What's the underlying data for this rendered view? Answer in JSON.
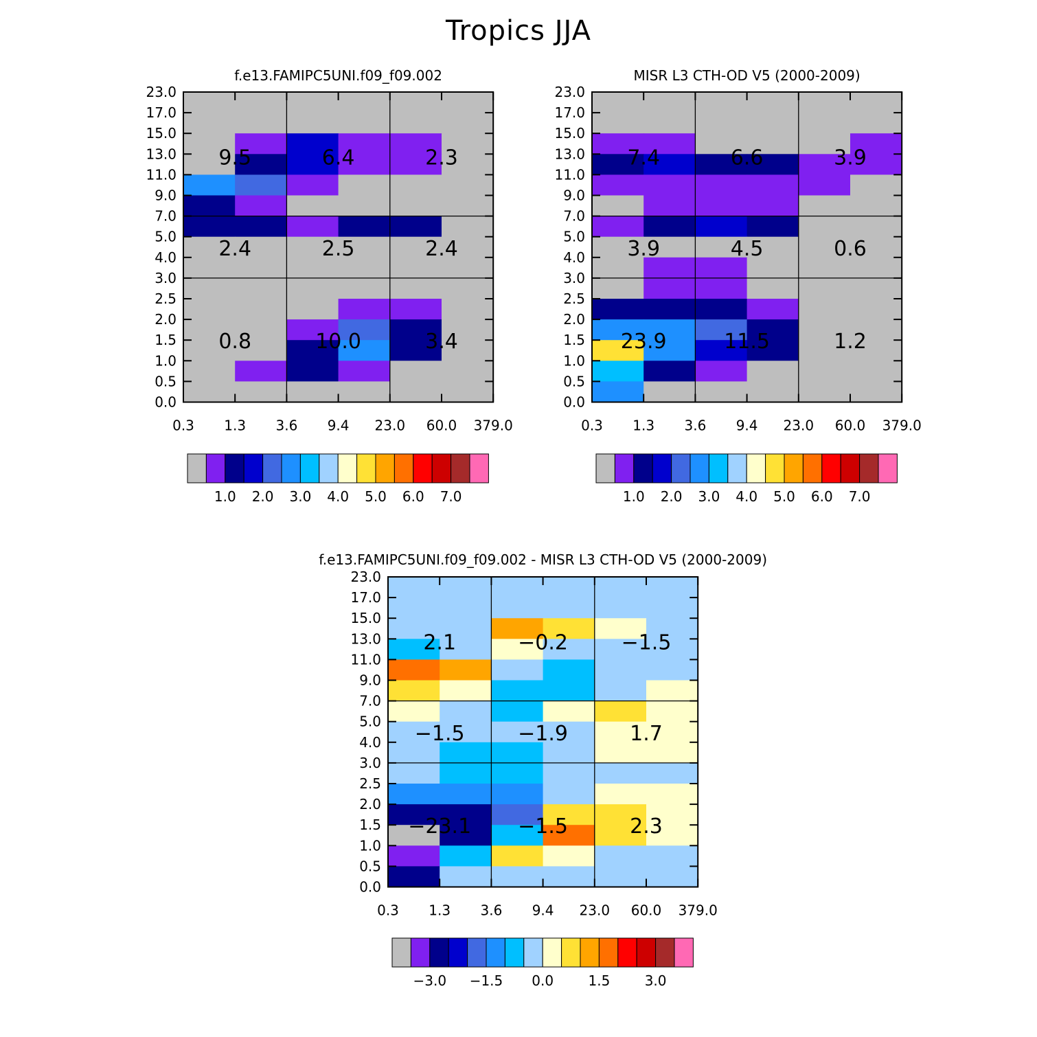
{
  "figure": {
    "title": "Tropics JJA"
  },
  "palette": [
    "#bebebe",
    "#8020f0",
    "#00008b",
    "#0000cd",
    "#4169e1",
    "#1e90ff",
    "#00bfff",
    "#a0d2ff",
    "#ffffcc",
    "#ffe135",
    "#ffa500",
    "#ff7000",
    "#ff0000",
    "#cd0000",
    "#a52a2a",
    "#ff69b4"
  ],
  "chart_data": [
    {
      "type": "heatmap",
      "title": "f.e13.FAMIPC5UNI.f09_f09.002",
      "x_ticks": [
        "0.3",
        "1.3",
        "3.6",
        "9.4",
        "23.0",
        "60.0",
        "379.0"
      ],
      "y_ticks": [
        "0.0",
        "0.5",
        "1.0",
        "1.5",
        "2.0",
        "2.5",
        "3.0",
        "4.0",
        "5.0",
        "7.0",
        "9.0",
        "11.0",
        "13.0",
        "15.0",
        "17.0",
        "23.0"
      ],
      "cell_color_index_rows_top_to_bottom": [
        [
          0,
          0,
          0,
          0,
          0,
          0
        ],
        [
          0,
          1,
          3,
          1,
          1,
          0
        ],
        [
          0,
          2,
          3,
          1,
          1,
          0
        ],
        [
          5,
          4,
          1,
          0,
          0,
          0
        ],
        [
          2,
          1,
          0,
          0,
          0,
          0
        ],
        [
          2,
          2,
          1,
          2,
          2,
          0
        ],
        [
          0,
          0,
          0,
          0,
          0,
          0
        ],
        [
          0,
          0,
          0,
          0,
          0,
          0
        ],
        [
          0,
          0,
          0,
          0,
          0,
          0
        ],
        [
          0,
          0,
          0,
          1,
          1,
          0
        ],
        [
          0,
          0,
          1,
          4,
          2,
          0
        ],
        [
          0,
          0,
          2,
          5,
          2,
          0
        ],
        [
          0,
          1,
          2,
          1,
          0,
          0
        ],
        [
          0,
          0,
          0,
          0,
          0,
          0
        ]
      ],
      "band_totals": [
        [
          "9.5",
          "6.4",
          "2.3"
        ],
        [
          "2.4",
          "2.5",
          "2.4"
        ],
        [
          "0.8",
          "10.0",
          "3.4"
        ]
      ],
      "colorbar": {
        "tick_labels": [
          "1.0",
          "2.0",
          "3.0",
          "4.0",
          "5.0",
          "6.0",
          "7.0"
        ]
      }
    },
    {
      "type": "heatmap",
      "title": "MISR L3 CTH-OD V5 (2000-2009)",
      "x_ticks": [
        "0.3",
        "1.3",
        "3.6",
        "9.4",
        "23.0",
        "60.0",
        "379.0"
      ],
      "y_ticks": [
        "0.0",
        "0.5",
        "1.0",
        "1.5",
        "2.0",
        "2.5",
        "3.0",
        "4.0",
        "5.0",
        "7.0",
        "9.0",
        "11.0",
        "13.0",
        "15.0",
        "17.0",
        "23.0"
      ],
      "cell_color_index_rows_top_to_bottom": [
        [
          0,
          0,
          0,
          0,
          0,
          0
        ],
        [
          1,
          1,
          0,
          0,
          0,
          1
        ],
        [
          2,
          3,
          2,
          2,
          1,
          1
        ],
        [
          1,
          1,
          1,
          1,
          1,
          0
        ],
        [
          0,
          1,
          1,
          1,
          0,
          0
        ],
        [
          1,
          2,
          3,
          2,
          0,
          0
        ],
        [
          0,
          0,
          0,
          0,
          0,
          0
        ],
        [
          0,
          1,
          1,
          0,
          0,
          0
        ],
        [
          0,
          1,
          1,
          0,
          0,
          0
        ],
        [
          2,
          2,
          2,
          1,
          0,
          0
        ],
        [
          5,
          5,
          4,
          2,
          0,
          0
        ],
        [
          9,
          5,
          3,
          2,
          0,
          0
        ],
        [
          6,
          2,
          1,
          0,
          0,
          0
        ],
        [
          5,
          0,
          0,
          0,
          0,
          0
        ]
      ],
      "band_totals": [
        [
          "7.4",
          "6.6",
          "3.9"
        ],
        [
          "3.9",
          "4.5",
          "0.6"
        ],
        [
          "23.9",
          "11.5",
          "1.2"
        ]
      ],
      "colorbar": {
        "tick_labels": [
          "1.0",
          "2.0",
          "3.0",
          "4.0",
          "5.0",
          "6.0",
          "7.0"
        ]
      }
    },
    {
      "type": "heatmap",
      "title": "f.e13.FAMIPC5UNI.f09_f09.002 - MISR L3 CTH-OD V5 (2000-2009)",
      "x_ticks": [
        "0.3",
        "1.3",
        "3.6",
        "9.4",
        "23.0",
        "60.0",
        "379.0"
      ],
      "y_ticks": [
        "0.0",
        "0.5",
        "1.0",
        "1.5",
        "2.0",
        "2.5",
        "3.0",
        "4.0",
        "5.0",
        "7.0",
        "9.0",
        "11.0",
        "13.0",
        "15.0",
        "17.0",
        "23.0"
      ],
      "cell_color_index_rows_top_to_bottom": [
        [
          7,
          7,
          7,
          7,
          7,
          7
        ],
        [
          7,
          7,
          10,
          9,
          8,
          7
        ],
        [
          6,
          7,
          8,
          7,
          7,
          7
        ],
        [
          11,
          10,
          7,
          6,
          7,
          7
        ],
        [
          9,
          8,
          6,
          6,
          7,
          8
        ],
        [
          8,
          7,
          6,
          8,
          9,
          8
        ],
        [
          7,
          7,
          7,
          7,
          8,
          8
        ],
        [
          7,
          6,
          6,
          7,
          8,
          8
        ],
        [
          7,
          6,
          6,
          7,
          7,
          7
        ],
        [
          5,
          5,
          5,
          7,
          8,
          8
        ],
        [
          2,
          2,
          4,
          9,
          9,
          8
        ],
        [
          0,
          2,
          6,
          11,
          9,
          8
        ],
        [
          1,
          6,
          9,
          8,
          7,
          7
        ],
        [
          2,
          7,
          7,
          7,
          7,
          7
        ]
      ],
      "band_totals": [
        [
          "2.1",
          "−0.2",
          "−1.5"
        ],
        [
          "−1.5",
          "−1.9",
          "1.7"
        ],
        [
          "−23.1",
          "−1.5",
          "2.3"
        ]
      ],
      "colorbar": {
        "tick_labels": [
          "−3.0",
          "−1.5",
          "0.0",
          "1.5",
          "3.0"
        ]
      }
    }
  ]
}
